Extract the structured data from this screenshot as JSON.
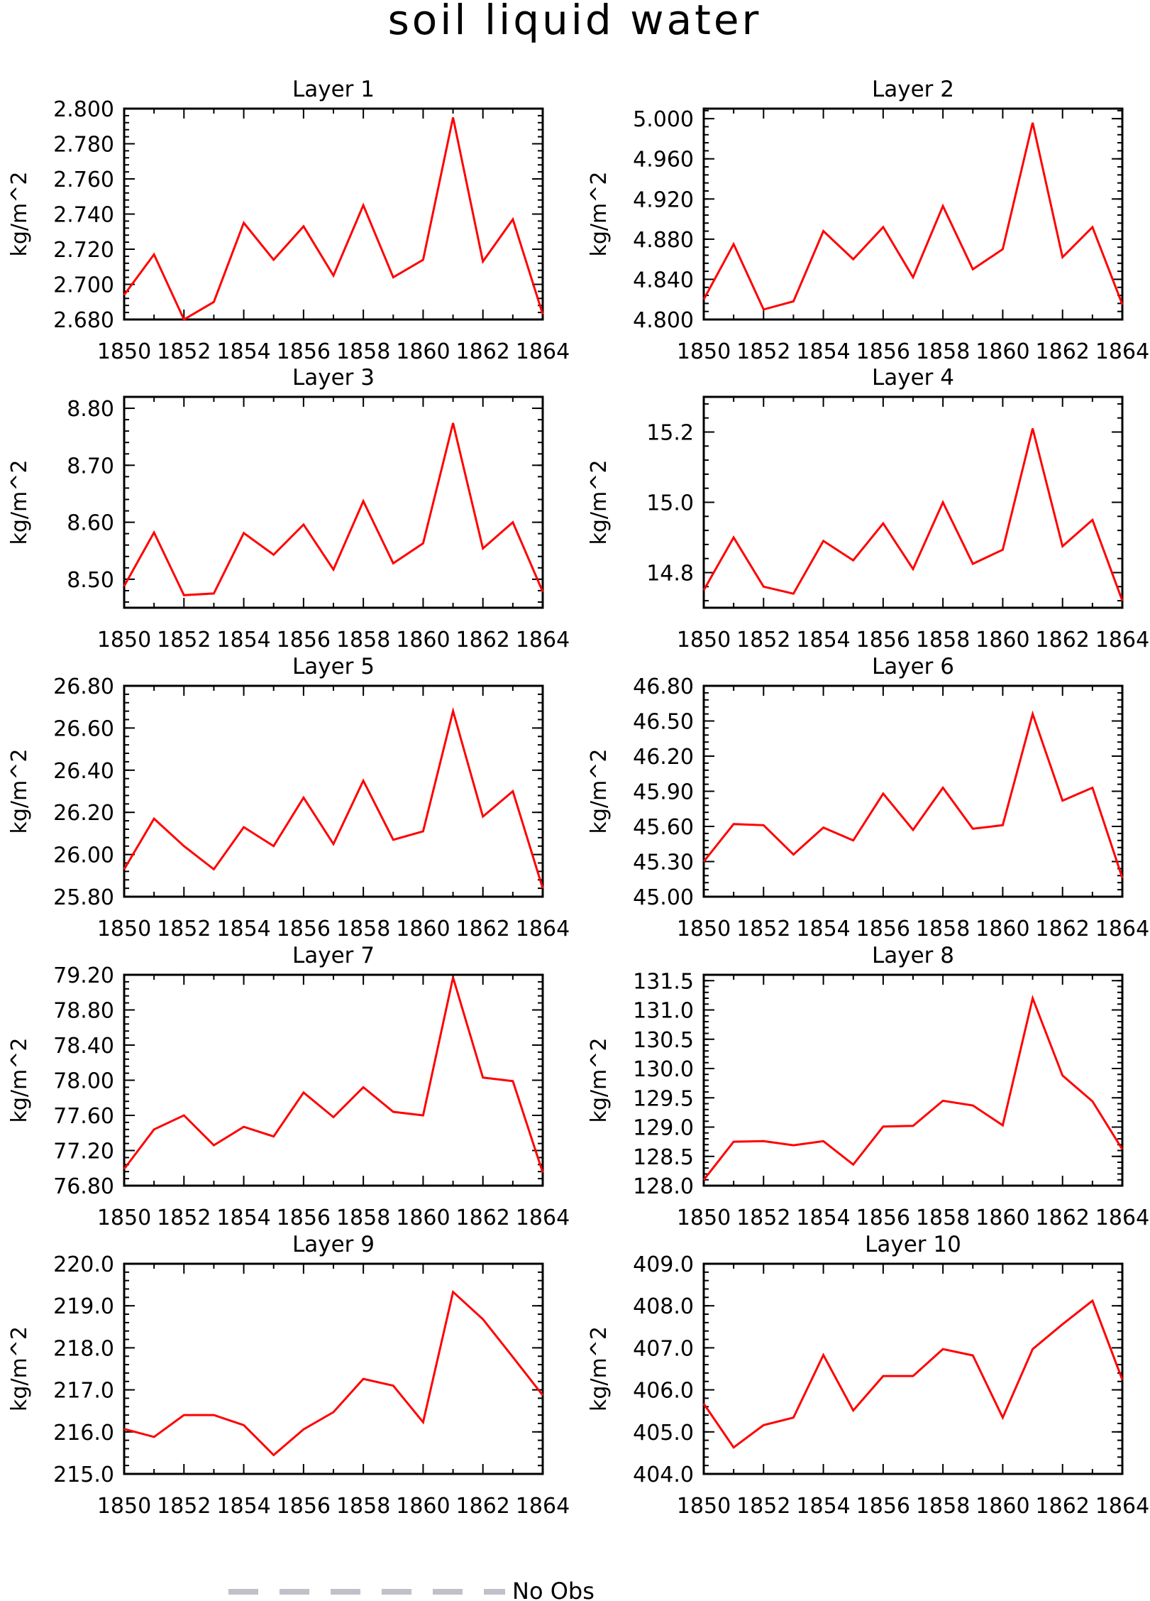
{
  "figure": {
    "title": "soil liquid water",
    "legend": {
      "label": "No Obs",
      "placement": "bottom-center"
    },
    "colors": {
      "series": "#ff0000",
      "axes": "#000000"
    }
  },
  "chart_data": [
    {
      "type": "line",
      "title": "Layer 1",
      "ylabel": "kg/m^2",
      "x": [
        1850,
        1851,
        1852,
        1853,
        1854,
        1855,
        1856,
        1857,
        1858,
        1859,
        1860,
        1861,
        1862,
        1863,
        1864
      ],
      "values": [
        2.694,
        2.717,
        2.68,
        2.69,
        2.735,
        2.714,
        2.733,
        2.705,
        2.745,
        2.704,
        2.714,
        2.795,
        2.713,
        2.737,
        2.683
      ],
      "xlim": [
        1850,
        1864
      ],
      "ylim": [
        2.68,
        2.8
      ],
      "yticks": [
        "2.680",
        "2.700",
        "2.720",
        "2.740",
        "2.760",
        "2.780",
        "2.800"
      ],
      "xticks": [
        "1850",
        "1852",
        "1854",
        "1856",
        "1858",
        "1860",
        "1862",
        "1864"
      ]
    },
    {
      "type": "line",
      "title": "Layer 2",
      "ylabel": "kg/m^2",
      "x": [
        1850,
        1851,
        1852,
        1853,
        1854,
        1855,
        1856,
        1857,
        1858,
        1859,
        1860,
        1861,
        1862,
        1863,
        1864
      ],
      "values": [
        4.82,
        4.875,
        4.81,
        4.818,
        4.888,
        4.86,
        4.892,
        4.842,
        4.913,
        4.85,
        4.87,
        4.996,
        4.862,
        4.892,
        4.815
      ],
      "xlim": [
        1850,
        1864
      ],
      "ylim": [
        4.8,
        5.01
      ],
      "yticks": [
        "4.800",
        "4.840",
        "4.880",
        "4.920",
        "4.960",
        "5.000"
      ],
      "xticks": [
        "1850",
        "1852",
        "1854",
        "1856",
        "1858",
        "1860",
        "1862",
        "1864"
      ]
    },
    {
      "type": "line",
      "title": "Layer 3",
      "ylabel": "kg/m^2",
      "x": [
        1850,
        1851,
        1852,
        1853,
        1854,
        1855,
        1856,
        1857,
        1858,
        1859,
        1860,
        1861,
        1862,
        1863,
        1864
      ],
      "values": [
        8.488,
        8.582,
        8.472,
        8.475,
        8.581,
        8.543,
        8.596,
        8.517,
        8.637,
        8.528,
        8.563,
        8.774,
        8.554,
        8.6,
        8.478
      ],
      "xlim": [
        1850,
        1864
      ],
      "ylim": [
        8.45,
        8.82
      ],
      "yticks": [
        "8.50",
        "8.60",
        "8.70",
        "8.80"
      ],
      "xticks": [
        "1850",
        "1852",
        "1854",
        "1856",
        "1858",
        "1860",
        "1862",
        "1864"
      ]
    },
    {
      "type": "line",
      "title": "Layer 4",
      "ylabel": "kg/m^2",
      "x": [
        1850,
        1851,
        1852,
        1853,
        1854,
        1855,
        1856,
        1857,
        1858,
        1859,
        1860,
        1861,
        1862,
        1863,
        1864
      ],
      "values": [
        14.75,
        14.9,
        14.76,
        14.74,
        14.89,
        14.835,
        14.94,
        14.81,
        15.0,
        14.825,
        14.865,
        15.21,
        14.875,
        14.95,
        14.72
      ],
      "xlim": [
        1850,
        1864
      ],
      "ylim": [
        14.7,
        15.3
      ],
      "yticks": [
        "14.8",
        "15.0",
        "15.2"
      ],
      "xticks": [
        "1850",
        "1852",
        "1854",
        "1856",
        "1858",
        "1860",
        "1862",
        "1864"
      ]
    },
    {
      "type": "line",
      "title": "Layer 5",
      "ylabel": "kg/m^2",
      "x": [
        1850,
        1851,
        1852,
        1853,
        1854,
        1855,
        1856,
        1857,
        1858,
        1859,
        1860,
        1861,
        1862,
        1863,
        1864
      ],
      "values": [
        25.93,
        26.17,
        26.04,
        25.93,
        26.13,
        26.04,
        26.27,
        26.05,
        26.35,
        26.07,
        26.11,
        26.68,
        26.18,
        26.3,
        25.84
      ],
      "xlim": [
        1850,
        1864
      ],
      "ylim": [
        25.8,
        26.8
      ],
      "yticks": [
        "25.80",
        "26.00",
        "26.20",
        "26.40",
        "26.60",
        "26.80"
      ],
      "xticks": [
        "1850",
        "1852",
        "1854",
        "1856",
        "1858",
        "1860",
        "1862",
        "1864"
      ]
    },
    {
      "type": "line",
      "title": "Layer 6",
      "ylabel": "kg/m^2",
      "x": [
        1850,
        1851,
        1852,
        1853,
        1854,
        1855,
        1856,
        1857,
        1858,
        1859,
        1860,
        1861,
        1862,
        1863,
        1864
      ],
      "values": [
        45.3,
        45.62,
        45.61,
        45.36,
        45.59,
        45.48,
        45.88,
        45.57,
        45.93,
        45.58,
        45.61,
        46.56,
        45.82,
        45.93,
        45.16
      ],
      "xlim": [
        1850,
        1864
      ],
      "ylim": [
        45.0,
        46.8
      ],
      "yticks": [
        "45.00",
        "45.30",
        "45.60",
        "45.90",
        "46.20",
        "46.50",
        "46.80"
      ],
      "xticks": [
        "1850",
        "1852",
        "1854",
        "1856",
        "1858",
        "1860",
        "1862",
        "1864"
      ]
    },
    {
      "type": "line",
      "title": "Layer 7",
      "ylabel": "kg/m^2",
      "x": [
        1850,
        1851,
        1852,
        1853,
        1854,
        1855,
        1856,
        1857,
        1858,
        1859,
        1860,
        1861,
        1862,
        1863,
        1864
      ],
      "values": [
        76.99,
        77.44,
        77.6,
        77.26,
        77.47,
        77.36,
        77.86,
        77.58,
        77.92,
        77.64,
        77.6,
        79.17,
        78.03,
        77.99,
        76.95
      ],
      "xlim": [
        1850,
        1864
      ],
      "ylim": [
        76.8,
        79.2
      ],
      "yticks": [
        "76.80",
        "77.20",
        "77.60",
        "78.00",
        "78.40",
        "78.80",
        "79.20"
      ],
      "xticks": [
        "1850",
        "1852",
        "1854",
        "1856",
        "1858",
        "1860",
        "1862",
        "1864"
      ]
    },
    {
      "type": "line",
      "title": "Layer 8",
      "ylabel": "kg/m^2",
      "x": [
        1850,
        1851,
        1852,
        1853,
        1854,
        1855,
        1856,
        1857,
        1858,
        1859,
        1860,
        1861,
        1862,
        1863,
        1864
      ],
      "values": [
        128.1,
        128.75,
        128.76,
        128.69,
        128.76,
        128.36,
        129.01,
        129.02,
        129.45,
        129.37,
        129.03,
        131.2,
        129.88,
        129.44,
        128.62
      ],
      "xlim": [
        1850,
        1864
      ],
      "ylim": [
        128.0,
        131.6
      ],
      "yticks": [
        "128.0",
        "128.5",
        "129.0",
        "129.5",
        "130.0",
        "130.5",
        "131.0",
        "131.5"
      ],
      "xticks": [
        "1850",
        "1852",
        "1854",
        "1856",
        "1858",
        "1860",
        "1862",
        "1864"
      ]
    },
    {
      "type": "line",
      "title": "Layer 9",
      "ylabel": "kg/m^2",
      "x": [
        1850,
        1851,
        1852,
        1853,
        1854,
        1855,
        1856,
        1857,
        1858,
        1859,
        1860,
        1861,
        1862,
        1863,
        1864
      ],
      "values": [
        216.07,
        215.88,
        216.4,
        216.4,
        216.16,
        215.45,
        216.06,
        216.47,
        217.26,
        217.1,
        216.23,
        219.33,
        218.68,
        217.78,
        216.87
      ],
      "xlim": [
        1850,
        1864
      ],
      "ylim": [
        215.0,
        220.0
      ],
      "yticks": [
        "215.0",
        "216.0",
        "217.0",
        "218.0",
        "219.0",
        "220.0"
      ],
      "xticks": [
        "1850",
        "1852",
        "1854",
        "1856",
        "1858",
        "1860",
        "1862",
        "1864"
      ]
    },
    {
      "type": "line",
      "title": "Layer 10",
      "ylabel": "kg/m^2",
      "x": [
        1850,
        1851,
        1852,
        1853,
        1854,
        1855,
        1856,
        1857,
        1858,
        1859,
        1860,
        1861,
        1862,
        1863,
        1864
      ],
      "values": [
        405.67,
        404.63,
        405.16,
        405.34,
        406.83,
        405.51,
        406.33,
        406.33,
        406.97,
        406.82,
        405.34,
        406.97,
        407.56,
        408.12,
        406.24
      ],
      "xlim": [
        1850,
        1864
      ],
      "ylim": [
        404.0,
        409.0
      ],
      "yticks": [
        "404.0",
        "405.0",
        "406.0",
        "407.0",
        "408.0",
        "409.0"
      ],
      "xticks": [
        "1850",
        "1852",
        "1854",
        "1856",
        "1858",
        "1860",
        "1862",
        "1864"
      ]
    }
  ]
}
